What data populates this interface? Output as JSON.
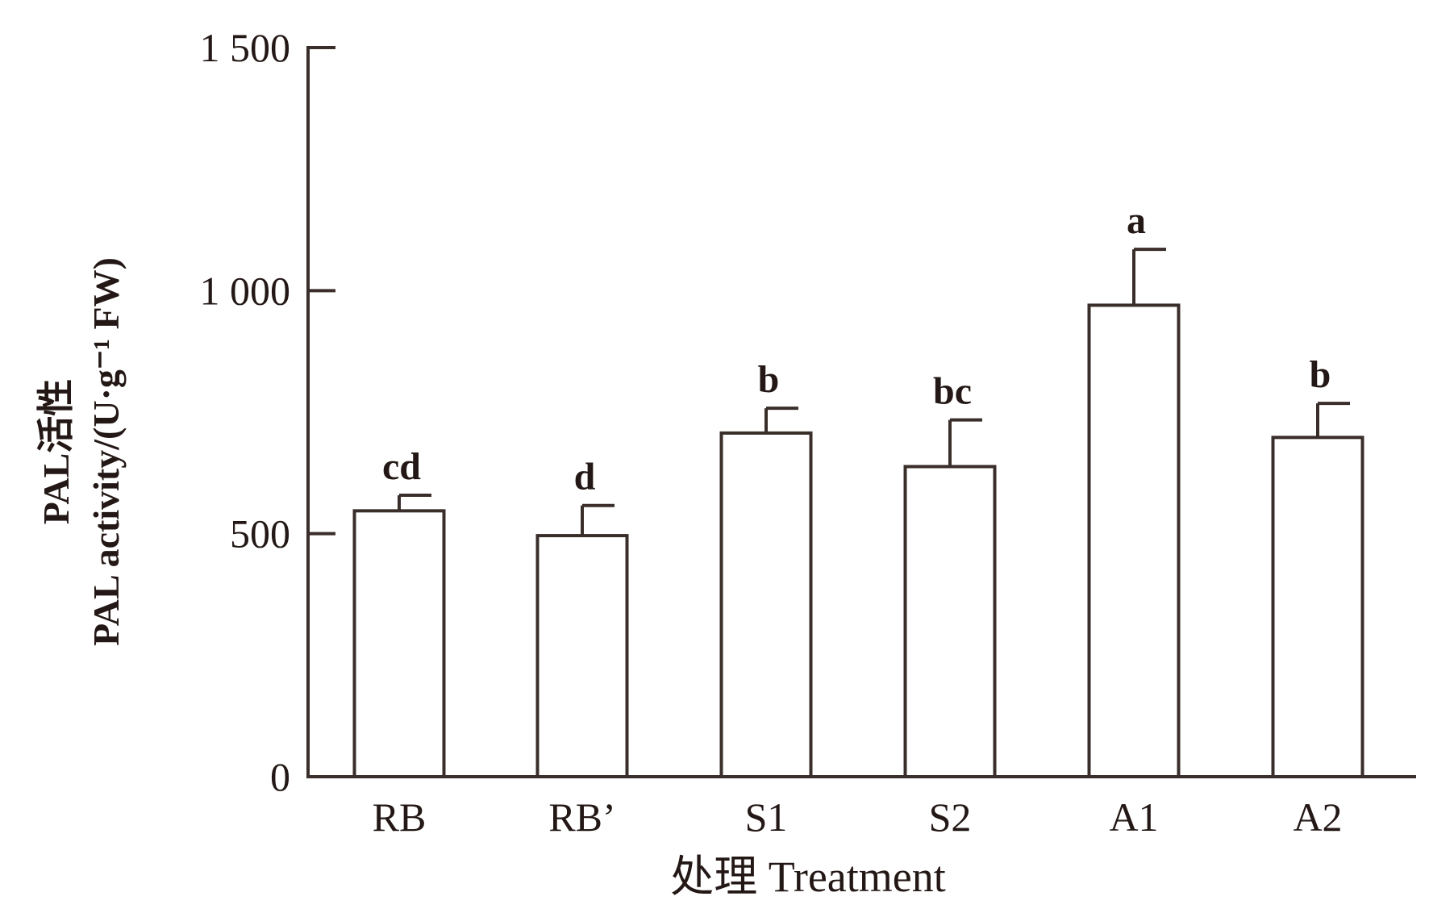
{
  "chart_data": {
    "type": "bar",
    "title": "",
    "xlabel": "处理 Treatment",
    "ylabel_cn": "PAL活性",
    "ylabel": "PAL activity/(U·g⁻¹ FW)",
    "ylim": [
      0,
      1500
    ],
    "yticks": [
      0,
      500,
      1000,
      1500
    ],
    "ytick_labels": [
      "0",
      "500",
      "1 000",
      "1 500"
    ],
    "categories": [
      "RB",
      "RB’",
      "S1",
      "S2",
      "A1",
      "A2"
    ],
    "values": [
      547,
      496,
      707,
      638,
      970,
      698
    ],
    "error_upper": [
      579,
      558,
      758,
      734,
      1085,
      768
    ],
    "significance": [
      "cd",
      "d",
      "b",
      "bc",
      "a",
      "b"
    ],
    "colors": {
      "bar_fill": "#ffffff",
      "stroke": "#3a2e2a"
    }
  }
}
